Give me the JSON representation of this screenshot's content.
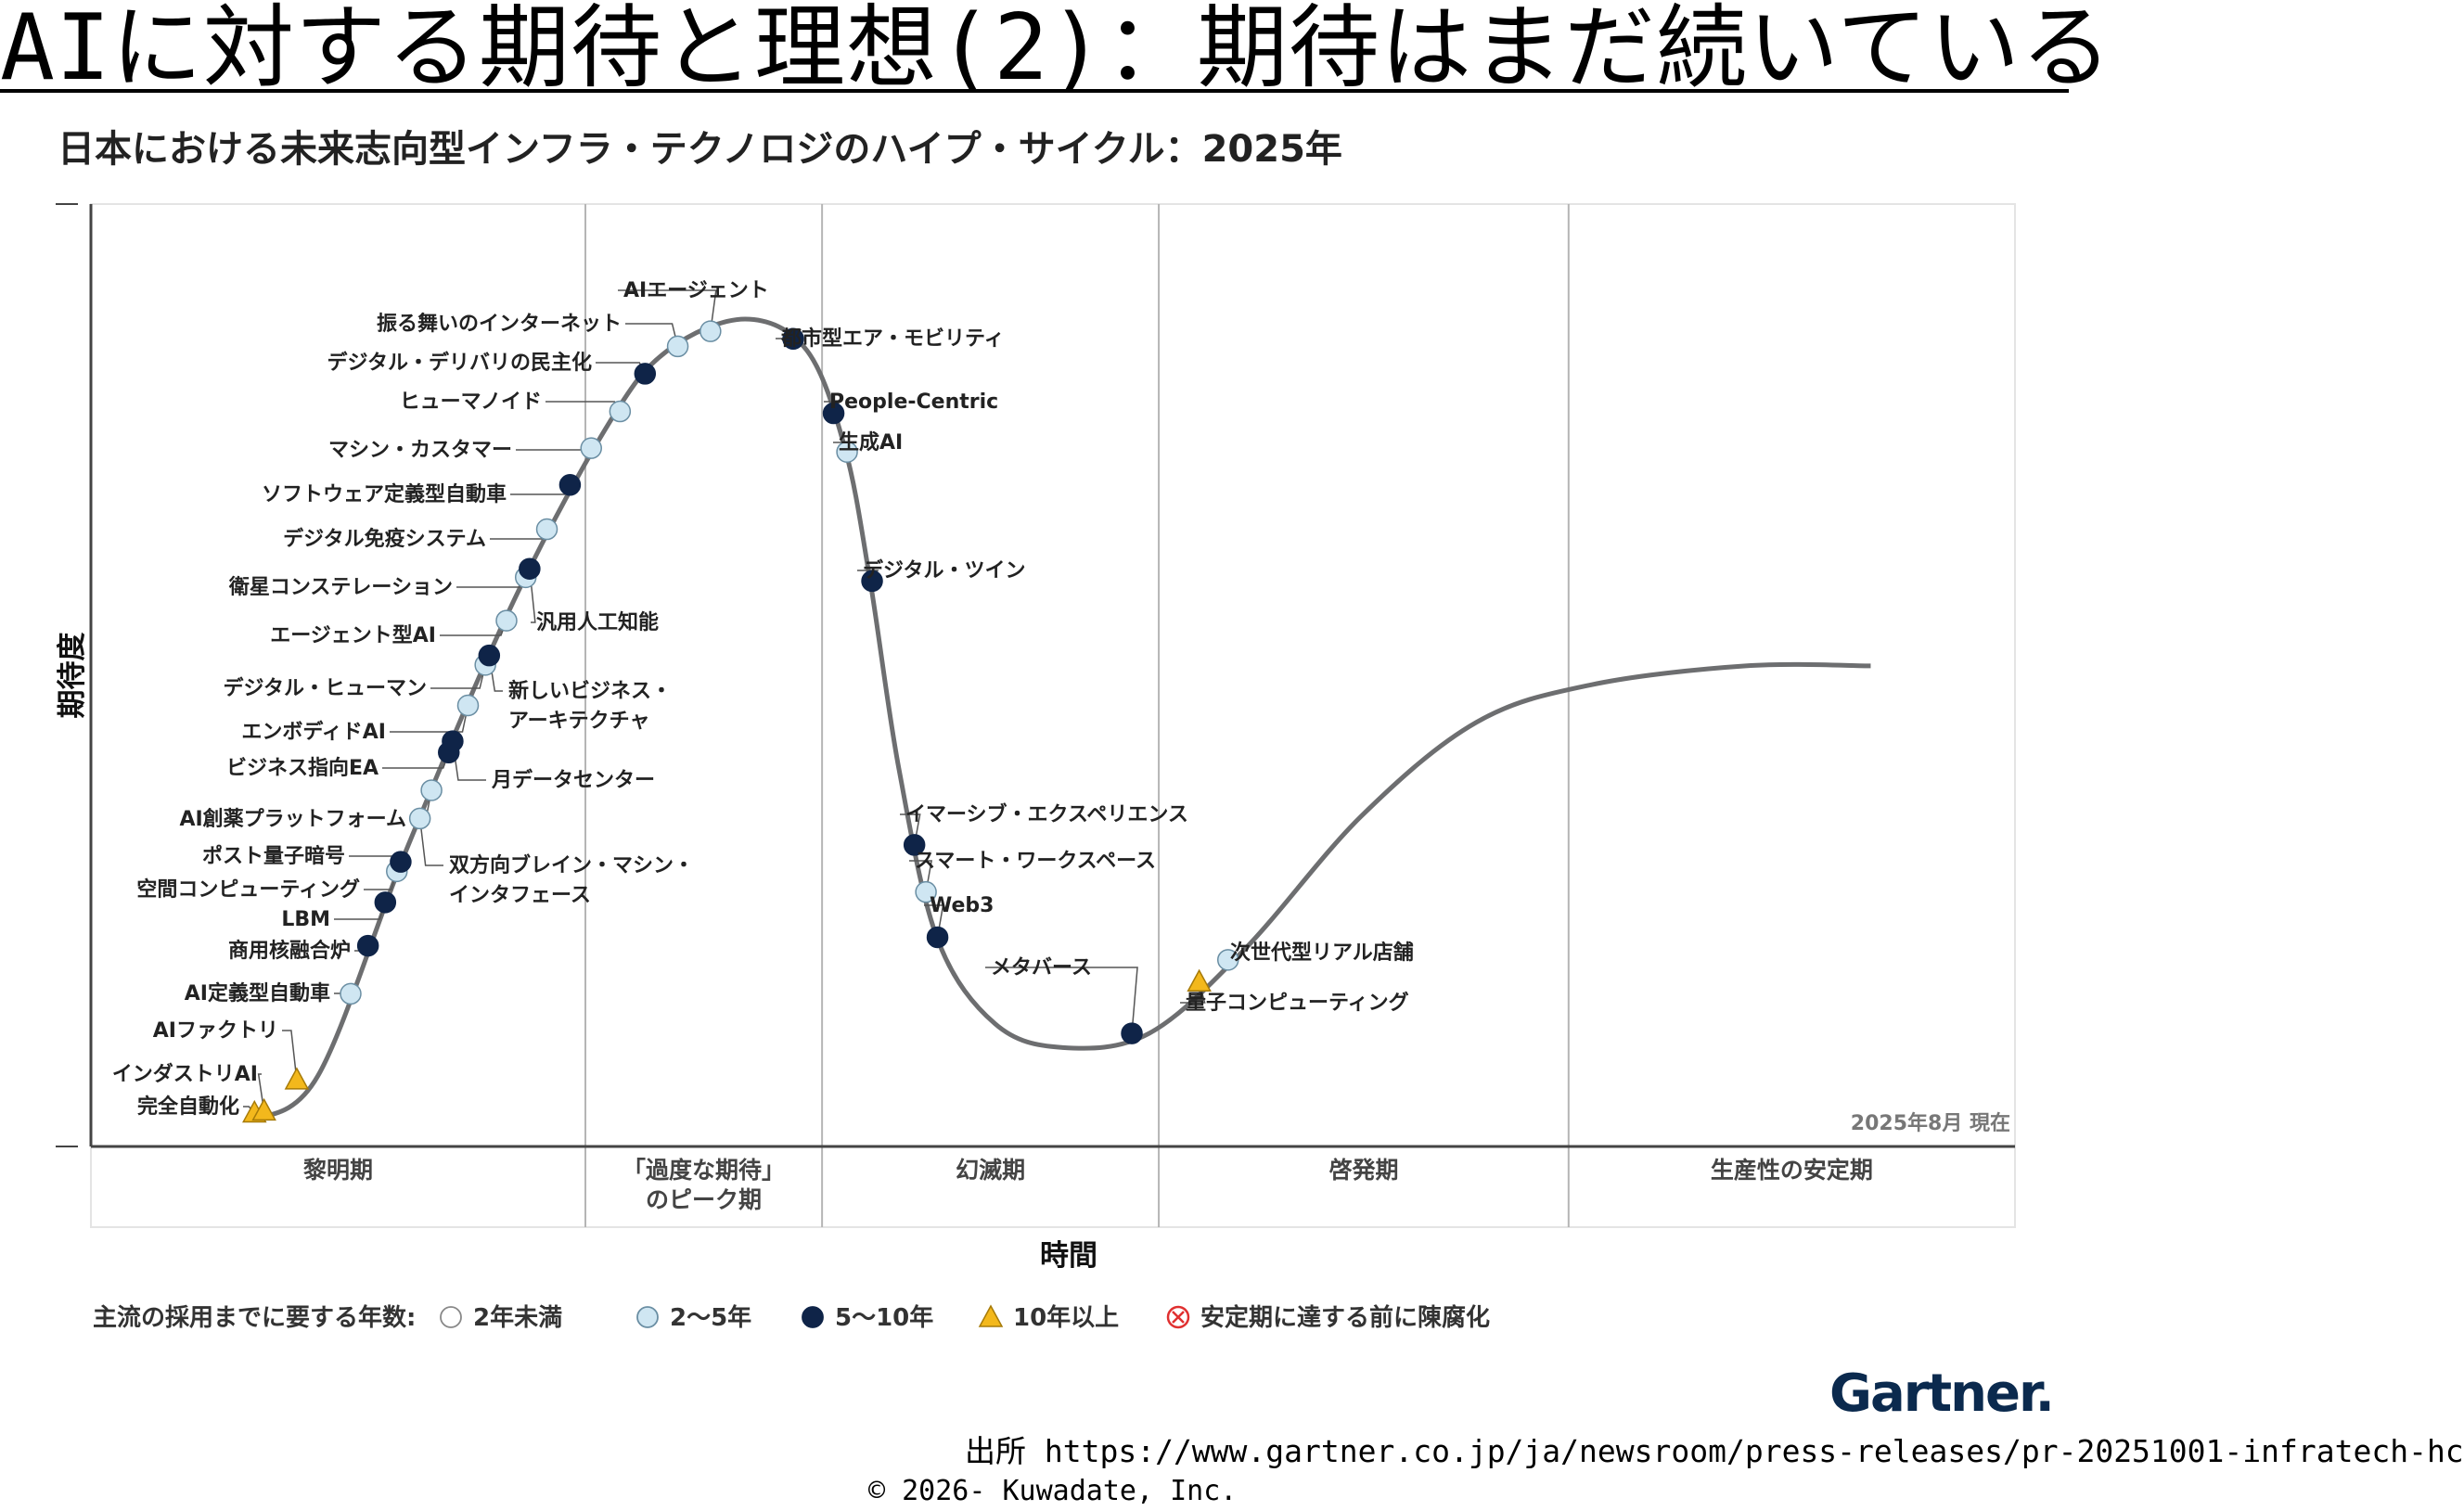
{
  "slide": {
    "title": "AIに対する期待と理想(2)：期待はまだ続いている",
    "source": "出所 https://www.gartner.co.jp/ja/newsroom/press-releases/pr-20251001-infratech-hc",
    "copyright": "© 2026- Kuwadate, Inc.",
    "logo_text": "Gartner."
  },
  "chart_data": {
    "type": "hype-cycle",
    "title": "日本における未来志向型インフラ・テクノロジのハイプ・サイクル：2025年",
    "xlabel": "時間",
    "ylabel": "期待度",
    "as_of": "2025年8月 現在",
    "phases": [
      {
        "label": "黎明期",
        "start": 0,
        "end": 0.257
      },
      {
        "label": "「過度な期待」\nのピーク期",
        "start": 0.257,
        "end": 0.38
      },
      {
        "label": "幻滅期",
        "start": 0.38,
        "end": 0.555
      },
      {
        "label": "啓発期",
        "start": 0.555,
        "end": 0.768
      },
      {
        "label": "生産性の安定期",
        "start": 0.768,
        "end": 1
      }
    ],
    "legend": {
      "title": "主流の採用までに要する年数:",
      "items": [
        {
          "key": "lt2",
          "label": "2年未満"
        },
        {
          "key": "y2_5",
          "label": "2～5年"
        },
        {
          "key": "y5_10",
          "label": "5～10年"
        },
        {
          "key": "gt10",
          "label": "10年以上"
        },
        {
          "key": "obsolete",
          "label": "安定期に達する前に陳腐化"
        }
      ]
    },
    "colors": {
      "lt2": "#ffffff",
      "y2_5": "#cfe6f2",
      "y5_10": "#0f2448",
      "gt10": "#f3b81c",
      "obsolete": "#e03030",
      "curve": "#6d6e70"
    },
    "technologies": [
      {
        "name": "完全自動化",
        "x": 0.085,
        "y": 0.035,
        "adoption": "gt10"
      },
      {
        "name": "インダストリAI",
        "x": 0.09,
        "y": 0.037,
        "adoption": "gt10"
      },
      {
        "name": "AIファクトリ",
        "x": 0.107,
        "y": 0.07,
        "adoption": "gt10"
      },
      {
        "name": "AI定義型自動車",
        "x": 0.135,
        "y": 0.162,
        "adoption": "y2_5"
      },
      {
        "name": "商用核融合炉",
        "x": 0.144,
        "y": 0.213,
        "adoption": "y5_10"
      },
      {
        "name": "LBM",
        "x": 0.153,
        "y": 0.259,
        "adoption": "y5_10"
      },
      {
        "name": "空間コンピューティング",
        "x": 0.159,
        "y": 0.292,
        "adoption": "y2_5"
      },
      {
        "name": "ポスト量子暗号",
        "x": 0.161,
        "y": 0.302,
        "adoption": "y5_10"
      },
      {
        "name": "双方向ブレイン・マシン・インタフェース",
        "x": 0.171,
        "y": 0.348,
        "adoption": "y2_5"
      },
      {
        "name": "AI創薬プラットフォーム",
        "x": 0.177,
        "y": 0.378,
        "adoption": "y2_5"
      },
      {
        "name": "ビジネス指向EA",
        "x": 0.186,
        "y": 0.418,
        "adoption": "y5_10"
      },
      {
        "name": "月データセンター",
        "x": 0.188,
        "y": 0.43,
        "adoption": "y5_10"
      },
      {
        "name": "エンボディドAI",
        "x": 0.196,
        "y": 0.468,
        "adoption": "y2_5"
      },
      {
        "name": "デジタル・ヒューマン",
        "x": 0.205,
        "y": 0.511,
        "adoption": "y2_5"
      },
      {
        "name": "新しいビジネス・アーキテクチャ",
        "x": 0.207,
        "y": 0.521,
        "adoption": "y5_10"
      },
      {
        "name": "エージェント型AI",
        "x": 0.216,
        "y": 0.558,
        "adoption": "y2_5"
      },
      {
        "name": "衛星コンステレーション",
        "x": 0.226,
        "y": 0.604,
        "adoption": "y2_5"
      },
      {
        "name": "汎用人工知能",
        "x": 0.228,
        "y": 0.613,
        "adoption": "y5_10"
      },
      {
        "name": "デジタル免疫システム",
        "x": 0.237,
        "y": 0.655,
        "adoption": "y2_5"
      },
      {
        "name": "ソフトウェア定義型自動車",
        "x": 0.249,
        "y": 0.702,
        "adoption": "y5_10"
      },
      {
        "name": "マシン・カスタマー",
        "x": 0.26,
        "y": 0.741,
        "adoption": "y2_5"
      },
      {
        "name": "ヒューマノイド",
        "x": 0.275,
        "y": 0.78,
        "adoption": "y2_5"
      },
      {
        "name": "デジタル・デリバリの民主化",
        "x": 0.288,
        "y": 0.82,
        "adoption": "y5_10"
      },
      {
        "name": "振る舞いのインターネット",
        "x": 0.305,
        "y": 0.849,
        "adoption": "y2_5"
      },
      {
        "name": "AIエージェント",
        "x": 0.322,
        "y": 0.865,
        "adoption": "y2_5"
      },
      {
        "name": "都市型エア・モビリティ",
        "x": 0.365,
        "y": 0.857,
        "adoption": "y5_10"
      },
      {
        "name": "People-Centric",
        "x": 0.386,
        "y": 0.778,
        "adoption": "y5_10"
      },
      {
        "name": "生成AI",
        "x": 0.393,
        "y": 0.737,
        "adoption": "y2_5"
      },
      {
        "name": "デジタル・ツイン",
        "x": 0.406,
        "y": 0.6,
        "adoption": "y5_10"
      },
      {
        "name": "イマーシブ・エクスペリエンス",
        "x": 0.428,
        "y": 0.32,
        "adoption": "y5_10"
      },
      {
        "name": "スマート・ワークスペース",
        "x": 0.434,
        "y": 0.27,
        "adoption": "y2_5"
      },
      {
        "name": "Web3",
        "x": 0.44,
        "y": 0.222,
        "adoption": "y5_10"
      },
      {
        "name": "メタバース",
        "x": 0.541,
        "y": 0.12,
        "adoption": "y5_10"
      },
      {
        "name": "量子コンピューティング",
        "x": 0.576,
        "y": 0.174,
        "adoption": "gt10"
      },
      {
        "name": "次世代型リアル店舗",
        "x": 0.591,
        "y": 0.198,
        "adoption": "y2_5"
      }
    ]
  }
}
